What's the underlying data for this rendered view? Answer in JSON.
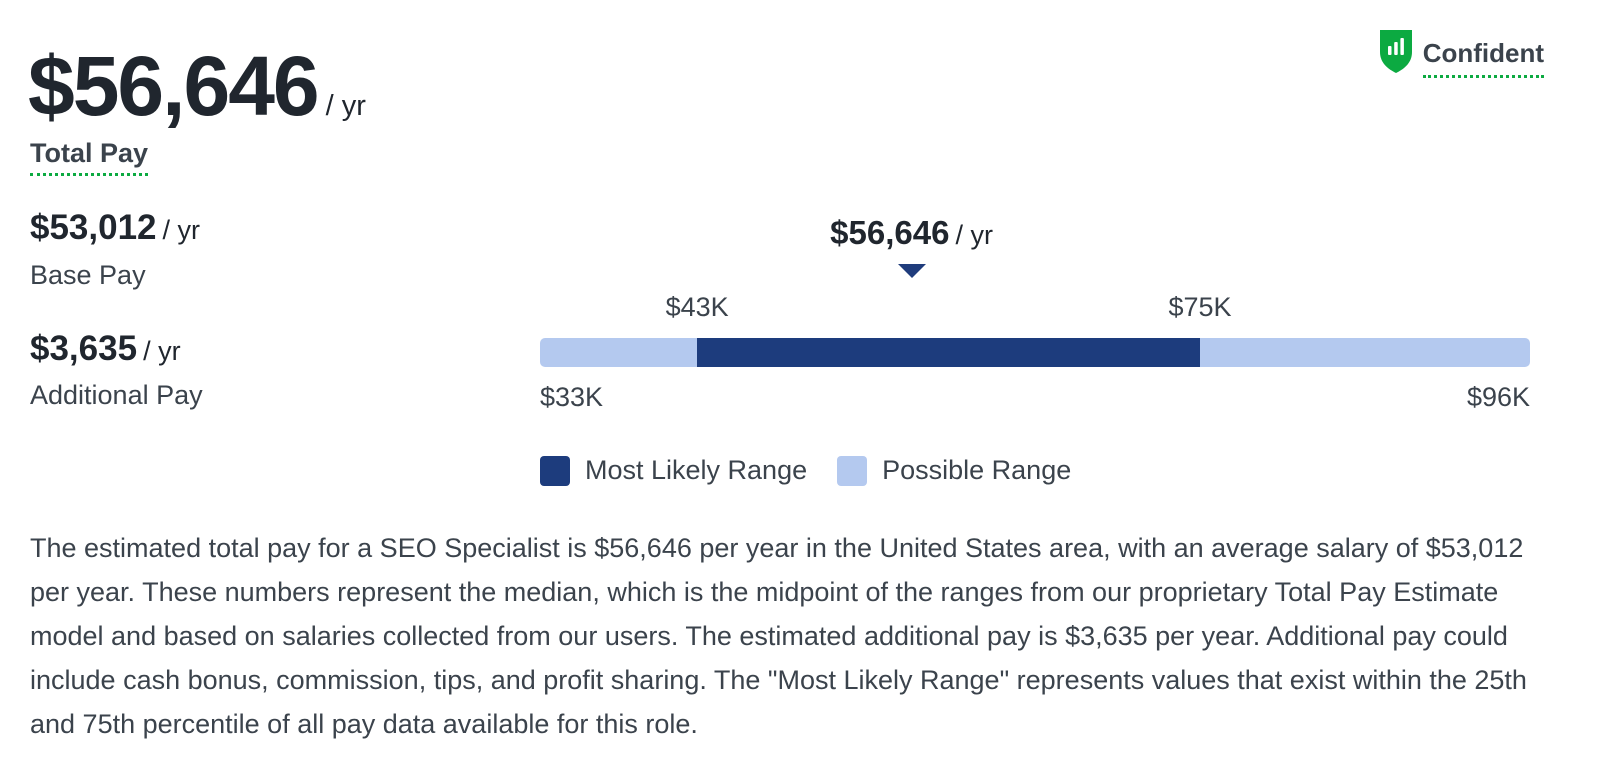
{
  "summary": {
    "total_pay": "$56,646",
    "total_pay_unit": "/ yr",
    "total_pay_label": "Total Pay",
    "base_pay": "$53,012",
    "base_pay_unit": "/ yr",
    "base_pay_label": "Base Pay",
    "additional_pay": "$3,635",
    "additional_pay_unit": "/ yr",
    "additional_pay_label": "Additional Pay"
  },
  "confidence": {
    "label": "Confident",
    "icon": "bar-chart-shield-icon",
    "color": "#0caa41"
  },
  "colors": {
    "most_likely": "#1d3c7d",
    "possible": "#b4c9ef",
    "accent_green": "#0caa41"
  },
  "chart_data": {
    "type": "range",
    "median": 56646,
    "median_label": "$56,646",
    "median_unit": "/ yr",
    "min": 33000,
    "max": 96000,
    "min_label": "$33K",
    "max_label": "$96K",
    "p25": 43000,
    "p75": 75000,
    "p25_label": "$43K",
    "p75_label": "$75K",
    "legend": [
      {
        "label": "Most Likely Range",
        "color": "#1d3c7d"
      },
      {
        "label": "Possible Range",
        "color": "#b4c9ef"
      }
    ]
  },
  "description": "The estimated total pay for a SEO Specialist is $56,646 per year in the United States area, with an average salary of $53,012 per year. These numbers represent the median, which is the midpoint of the ranges from our proprietary Total Pay Estimate model and based on salaries collected from our users. The estimated additional pay is $3,635 per year. Additional pay could include cash bonus, commission, tips, and profit sharing. The \"Most Likely Range\" represents values that exist within the 25th and 75th percentile of all pay data available for this role."
}
